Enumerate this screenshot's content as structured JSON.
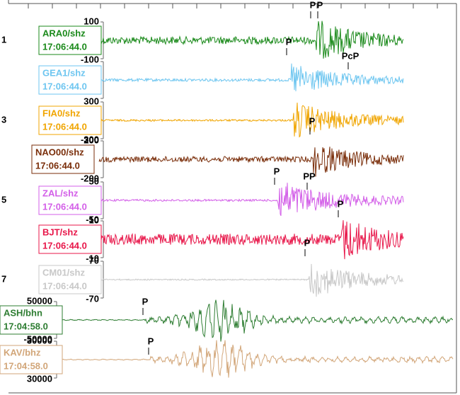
{
  "traces": [
    {
      "row": "1",
      "label": "ARA0/shz",
      "time": "17:06:44.0",
      "color": "#1b8a1b",
      "scale_top": "100",
      "scale_bottom": "-100",
      "picks": [
        "P",
        "P",
        "PcP"
      ]
    },
    {
      "row": null,
      "label": "GEA1/shz",
      "time": "17:06:44.0",
      "color": "#6ec6f0",
      "scale_top": null,
      "scale_bottom": null,
      "picks": [
        "P"
      ]
    },
    {
      "row": "3",
      "label": "FIA0/shz",
      "time": "17:06:44.0",
      "color": "#f0a500",
      "scale_top": "300",
      "scale_bottom": "-300",
      "picks": [
        "P"
      ]
    },
    {
      "row": null,
      "label": "NAO00/shz",
      "time": "17:06:44.0",
      "color": "#7a2e0a",
      "scale_top": "200",
      "scale_bottom": "-200",
      "picks": [
        "PP"
      ]
    },
    {
      "row": "5",
      "label": "ZAL/shz",
      "time": "17:06:44.0",
      "color": "#d35fe8",
      "scale_top": "50",
      "scale_bottom": "-50",
      "picks": [
        "P"
      ]
    },
    {
      "row": null,
      "label": "BJT/shz",
      "time": "17:06:44.0",
      "color": "#e8174a",
      "scale_top": "10",
      "scale_bottom": "-10",
      "picks": [
        "P"
      ]
    },
    {
      "row": "7",
      "label": "CM01/shz",
      "time": "17:06:44.0",
      "color": "#c8c8c8",
      "scale_top": "70",
      "scale_bottom": "-70",
      "picks": [
        "P"
      ]
    },
    {
      "row": null,
      "label": "ASH/bhn",
      "time": "17:04:58.0",
      "color": "#2e7d32",
      "scale_top": "50000",
      "scale_bottom": "-50000",
      "picks": [
        "P"
      ]
    },
    {
      "row": "9",
      "label": "KAV/bhz",
      "time": "17:04:58.0",
      "color": "#d2a679",
      "scale_top": "30000",
      "scale_bottom": "30000",
      "picks": [
        "P"
      ]
    }
  ]
}
